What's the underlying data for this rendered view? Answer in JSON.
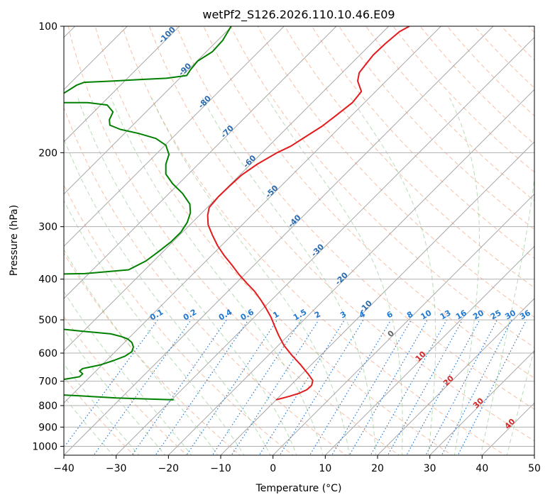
{
  "chart_data": {
    "type": "line",
    "subtype": "skew-T log-P diagram",
    "title": "wetPf2_S126.2026.110.10.46.E09",
    "xlabel": "Temperature (°C)",
    "ylabel": "Pressure (hPa)",
    "xlim": [
      -40,
      50
    ],
    "ylim": [
      1050,
      100
    ],
    "y_scale": "log",
    "grid": true,
    "x_ticks": [
      "−40",
      "−30",
      "−20",
      "−10",
      "0",
      "10",
      "20",
      "30",
      "40",
      "50"
    ],
    "y_ticks": [
      "100",
      "200",
      "300",
      "400",
      "500",
      "600",
      "700",
      "800",
      "900",
      "1000"
    ],
    "series": [
      {
        "color": "#e41a1c",
        "description": "temperature",
        "points": [
          [
            26.1,
            100
          ],
          [
            24.2,
            103
          ],
          [
            21.5,
            110
          ],
          [
            19.2,
            117
          ],
          [
            17.8,
            123
          ],
          [
            16.5,
            129
          ],
          [
            16.2,
            135
          ],
          [
            16.9,
            143
          ],
          [
            15.2,
            152
          ],
          [
            12.1,
            163
          ],
          [
            9.4,
            173
          ],
          [
            6.3,
            183
          ],
          [
            3.4,
            193
          ],
          [
            0.8,
            200
          ],
          [
            -3.0,
            213
          ],
          [
            -6.0,
            226
          ],
          [
            -8.3,
            240
          ],
          [
            -10.5,
            255
          ],
          [
            -12.2,
            270
          ],
          [
            -12.5,
            282
          ],
          [
            -12.4,
            297
          ],
          [
            -11.6,
            314
          ],
          [
            -10.6,
            333
          ],
          [
            -9.3,
            352
          ],
          [
            -7.8,
            371
          ],
          [
            -6.5,
            390
          ],
          [
            -5.0,
            409
          ],
          [
            -3.5,
            428
          ],
          [
            -2.3,
            449
          ],
          [
            -1.3,
            470
          ],
          [
            -0.4,
            492
          ],
          [
            0.3,
            517
          ],
          [
            1.1,
            545
          ],
          [
            2.1,
            575
          ],
          [
            3.6,
            607
          ],
          [
            5.3,
            640
          ],
          [
            6.7,
            672
          ],
          [
            7.6,
            697
          ],
          [
            7.4,
            716
          ],
          [
            6.5,
            733
          ],
          [
            5.1,
            747
          ],
          [
            3.2,
            760
          ],
          [
            0.6,
            775
          ]
        ]
      },
      {
        "color": "#008000",
        "description": "dewpoint",
        "points": [
          [
            -8.0,
            100
          ],
          [
            -9.6,
            108
          ],
          [
            -11.6,
            115
          ],
          [
            -14.4,
            121
          ],
          [
            -15.8,
            127
          ],
          [
            -16.5,
            131
          ],
          [
            -20.4,
            133
          ],
          [
            -25.6,
            134
          ],
          [
            -30.5,
            135
          ],
          [
            -36.1,
            136
          ],
          [
            -37.5,
            138
          ],
          [
            -41.4,
            148
          ],
          [
            -41.8,
            152
          ],
          [
            -39.0,
            152
          ],
          [
            -35.5,
            152
          ],
          [
            -31.7,
            154
          ],
          [
            -30.6,
            160
          ],
          [
            -31.3,
            167
          ],
          [
            -31.2,
            172
          ],
          [
            -29.2,
            176
          ],
          [
            -25.7,
            180
          ],
          [
            -22.4,
            185
          ],
          [
            -20.5,
            192
          ],
          [
            -19.9,
            202
          ],
          [
            -20.5,
            213
          ],
          [
            -20.5,
            225
          ],
          [
            -19.2,
            237
          ],
          [
            -17.3,
            250
          ],
          [
            -15.9,
            265
          ],
          [
            -15.8,
            278
          ],
          [
            -16.4,
            293
          ],
          [
            -17.6,
            309
          ],
          [
            -19.5,
            326
          ],
          [
            -21.9,
            344
          ],
          [
            -24.3,
            362
          ],
          [
            -27.6,
            380
          ],
          [
            -36.0,
            388
          ],
          [
            -48.0,
            390
          ],
          [
            -50.5,
            392
          ],
          [
            -50.8,
            400
          ],
          [
            -50.8,
            412
          ],
          [
            -50.4,
            424
          ],
          [
            -49.8,
            440
          ],
          [
            -49.2,
            459
          ],
          [
            -49.1,
            481
          ],
          [
            -49.3,
            508
          ],
          [
            -44.4,
            520
          ],
          [
            -36.5,
            532
          ],
          [
            -31.0,
            540
          ],
          [
            -29.0,
            548
          ],
          [
            -27.8,
            555
          ],
          [
            -27.0,
            566
          ],
          [
            -26.7,
            580
          ],
          [
            -27.0,
            595
          ],
          [
            -28.3,
            610
          ],
          [
            -30.5,
            625
          ],
          [
            -33.0,
            640
          ],
          [
            -36.4,
            653
          ],
          [
            -37.0,
            662
          ],
          [
            -36.4,
            672
          ],
          [
            -37.0,
            683
          ],
          [
            -43.0,
            703
          ],
          [
            -52.0,
            723
          ],
          [
            -62.0,
            741
          ],
          [
            -58.0,
            745
          ],
          [
            -50.0,
            748
          ],
          [
            -43.0,
            752
          ],
          [
            -37.0,
            758
          ],
          [
            -30.0,
            767
          ],
          [
            -19.0,
            775
          ]
        ]
      }
    ],
    "mixing_ratio_labels": [
      "0.1",
      "0.2",
      "0.4",
      "0.6",
      "1",
      "1.5",
      "2",
      "3",
      "4",
      "6",
      "8",
      "10",
      "13",
      "16",
      "20",
      "25",
      "30",
      "36"
    ],
    "isotherm_labels": [
      "-100",
      "-90",
      "-80",
      "-70",
      "-60",
      "-50",
      "-40",
      "-30",
      "-20",
      "-10"
    ],
    "isotherm_labels_red": [
      "10",
      "20",
      "30",
      "40"
    ],
    "isotherm_label_zero": "0",
    "colors": {
      "temperature": "#e41a1c",
      "dewpoint": "#008000",
      "dry_adiabat": "#f4a582",
      "moist_adiabat": "#7fbf7b",
      "mixing_ratio": "#1f78d1",
      "isotherm_label_blue": "#2b6cb0",
      "isotherm_label_red": "#d62728",
      "isotherm": "#999999",
      "grid": "#b0b0b0"
    }
  }
}
